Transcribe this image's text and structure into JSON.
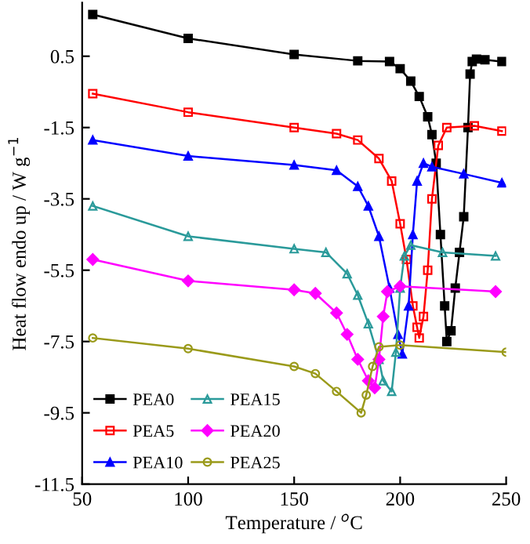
{
  "chart_data": {
    "type": "line",
    "xlabel": "Temperature / $^{o}$C",
    "ylabel": "Heat flow endo up / W g$^{−1}$",
    "xlim": [
      50,
      250
    ],
    "xticks": [
      50,
      100,
      150,
      200,
      250
    ],
    "ylim": [
      -11.5,
      2.0
    ],
    "yticks": [
      -11.5,
      -9.5,
      -7.5,
      -5.5,
      -3.5,
      -1.5,
      0.5
    ],
    "grid": false,
    "legend": "bottom left",
    "line_style": "solid",
    "series": [
      {
        "name": "PEA0",
        "color": "#000000",
        "marker": "square",
        "x": [
          55,
          100,
          150,
          180,
          195,
          200,
          205,
          209,
          213,
          215,
          217,
          219,
          221,
          222,
          224,
          226,
          228,
          230,
          232,
          233,
          234,
          236,
          240,
          248
        ],
        "values": [
          1.67,
          1.0,
          0.55,
          0.37,
          0.35,
          0.15,
          -0.2,
          -0.63,
          -1.2,
          -1.7,
          -2.5,
          -4.5,
          -6.5,
          -7.5,
          -7.2,
          -6.0,
          -5.0,
          -4.0,
          -1.5,
          0.0,
          0.35,
          0.42,
          0.4,
          0.35
        ]
      },
      {
        "name": "PEA5",
        "color": "#ff0000",
        "marker": "square",
        "x": [
          55,
          100,
          150,
          170,
          180,
          190,
          196,
          200,
          203,
          206,
          208,
          209,
          211,
          213,
          215,
          218,
          222,
          235,
          248
        ],
        "values": [
          -0.55,
          -1.07,
          -1.5,
          -1.67,
          -1.85,
          -2.37,
          -3.0,
          -4.2,
          -5.2,
          -6.5,
          -7.1,
          -7.4,
          -6.8,
          -5.5,
          -3.5,
          -2.0,
          -1.5,
          -1.45,
          -1.6
        ]
      },
      {
        "name": "PEA10",
        "color": "#0000ff",
        "marker": "triangle",
        "x": [
          55,
          100,
          150,
          170,
          180,
          185,
          190,
          195,
          199,
          201,
          204,
          206,
          208,
          211,
          215,
          230,
          248
        ],
        "values": [
          -1.85,
          -2.3,
          -2.55,
          -2.7,
          -3.15,
          -3.7,
          -4.55,
          -6.0,
          -7.3,
          -7.85,
          -6.5,
          -4.5,
          -3.0,
          -2.5,
          -2.6,
          -2.8,
          -3.05
        ]
      },
      {
        "name": "PEA15",
        "color": "#2a9a9a",
        "marker": "triangle",
        "x": [
          55,
          100,
          150,
          165,
          175,
          180,
          185,
          190,
          192,
          196,
          198,
          200,
          202,
          205,
          220,
          245
        ],
        "values": [
          -3.7,
          -4.55,
          -4.9,
          -5.0,
          -5.6,
          -6.2,
          -7.0,
          -8.0,
          -8.6,
          -8.9,
          -7.8,
          -6.0,
          -5.1,
          -4.8,
          -5.0,
          -5.1
        ]
      },
      {
        "name": "PEA20",
        "color": "#ff00ff",
        "marker": "diamond",
        "x": [
          55,
          100,
          150,
          160,
          170,
          175,
          180,
          185,
          188,
          190,
          192,
          194,
          200,
          245
        ],
        "values": [
          -5.2,
          -5.8,
          -6.05,
          -6.15,
          -6.7,
          -7.3,
          -8.0,
          -8.6,
          -8.8,
          -8.0,
          -6.8,
          -6.1,
          -5.95,
          -6.1
        ]
      },
      {
        "name": "PEA25",
        "color": "#9a9a1a",
        "marker": "circle",
        "x": [
          55,
          100,
          150,
          160,
          170,
          181.6,
          184,
          187,
          190,
          200,
          250
        ],
        "values": [
          -7.4,
          -7.7,
          -8.2,
          -8.4,
          -8.9,
          -9.5,
          -9.0,
          -8.2,
          -7.65,
          -7.6,
          -7.8
        ]
      }
    ]
  }
}
